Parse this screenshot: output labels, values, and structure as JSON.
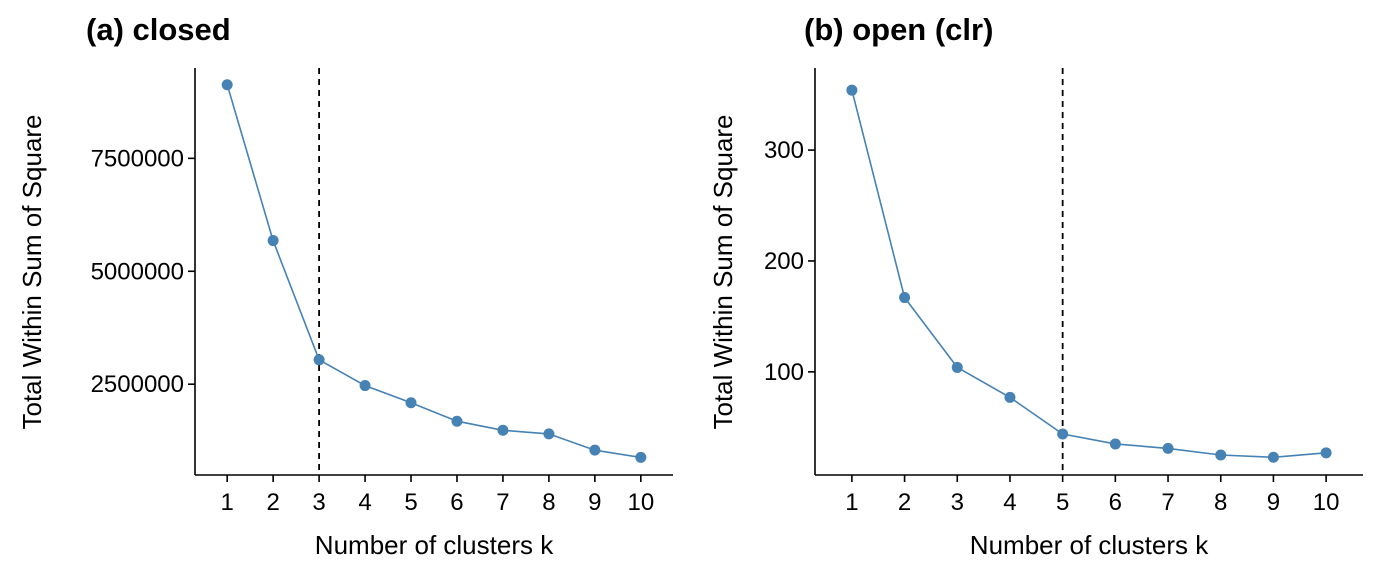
{
  "chart_data": [
    {
      "type": "line",
      "title": "(a) closed",
      "xlabel": "Number of clusters k",
      "ylabel": "Total Within Sum of Square",
      "x": [
        1,
        2,
        3,
        4,
        5,
        6,
        7,
        8,
        9,
        10
      ],
      "series": [
        {
          "values": [
            9130000,
            5680000,
            3040000,
            2470000,
            2090000,
            1680000,
            1480000,
            1400000,
            1040000,
            880000
          ]
        }
      ],
      "xlim": [
        0.3,
        10.7
      ],
      "ylim": [
        490000,
        9500000
      ],
      "yticks": [
        2500000,
        5000000,
        7500000
      ],
      "ytick_labels": [
        "2500000",
        "5000000",
        "7500000"
      ],
      "xticks": [
        1,
        2,
        3,
        4,
        5,
        6,
        7,
        8,
        9,
        10
      ],
      "xtick_labels": [
        "1",
        "2",
        "3",
        "4",
        "5",
        "6",
        "7",
        "8",
        "9",
        "10"
      ],
      "vline": 3,
      "grid": false,
      "color": "#4682b4"
    },
    {
      "type": "line",
      "title": "(b) open (clr)",
      "xlabel": "Number of clusters k",
      "ylabel": "Total Within Sum of Square",
      "x": [
        1,
        2,
        3,
        4,
        5,
        6,
        7,
        8,
        9,
        10
      ],
      "series": [
        {
          "values": [
            354,
            167,
            104,
            77,
            44,
            35,
            31,
            25,
            23,
            27
          ]
        }
      ],
      "xlim": [
        0.3,
        10.7
      ],
      "ylim": [
        7,
        374
      ],
      "yticks": [
        100,
        200,
        300
      ],
      "ytick_labels": [
        "100",
        "200",
        "300"
      ],
      "xticks": [
        1,
        2,
        3,
        4,
        5,
        6,
        7,
        8,
        9,
        10
      ],
      "xtick_labels": [
        "1",
        "2",
        "3",
        "4",
        "5",
        "6",
        "7",
        "8",
        "9",
        "10"
      ],
      "vline": 5,
      "grid": false,
      "color": "#4682b4"
    }
  ]
}
